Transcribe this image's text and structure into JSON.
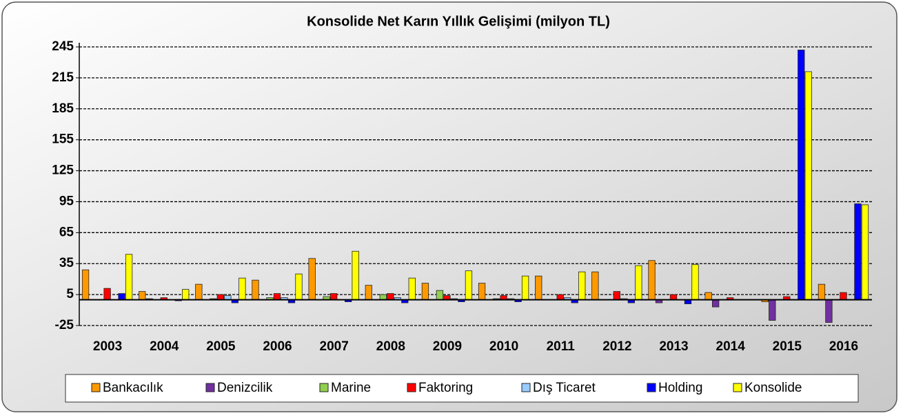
{
  "chart_data": {
    "type": "bar",
    "title": "Konsolide Net Karın Yıllık Gelişimi (milyon TL)",
    "categories": [
      "2003",
      "2004",
      "2005",
      "2006",
      "2007",
      "2008",
      "2009",
      "2010",
      "2011",
      "2012",
      "2013",
      "2014",
      "2015",
      "2016"
    ],
    "series": [
      {
        "name": "Bankacılık",
        "color": "#ff9900",
        "values": [
          29,
          8,
          15,
          19,
          40,
          14,
          16,
          16,
          23,
          27,
          38,
          7,
          -2,
          15
        ]
      },
      {
        "name": "Denizcilik",
        "color": "#7030a0",
        "values": [
          0,
          1,
          0,
          0,
          0,
          0,
          0,
          0,
          0,
          0,
          -3,
          -7,
          -20,
          -22
        ]
      },
      {
        "name": "Marine",
        "color": "#92d050",
        "values": [
          0,
          0,
          1,
          2,
          3,
          5,
          9,
          1,
          0,
          0,
          0,
          0,
          0,
          0
        ]
      },
      {
        "name": "Faktoring",
        "color": "#ff0000",
        "values": [
          11,
          2,
          5,
          6,
          6,
          6,
          4,
          4,
          5,
          8,
          5,
          2,
          3,
          7
        ]
      },
      {
        "name": "Dış Ticaret",
        "color": "#99ccff",
        "values": [
          0,
          0,
          4,
          2,
          0,
          2,
          1,
          1,
          2,
          1,
          0,
          0,
          0,
          0
        ]
      },
      {
        "name": "Holding",
        "color": "#0000ff",
        "values": [
          6,
          -1,
          -3,
          -3,
          -2,
          -3,
          -2,
          -2,
          -3,
          -3,
          -4,
          0,
          242,
          93
        ]
      },
      {
        "name": "Konsolide",
        "color": "#ffff00",
        "values": [
          44,
          10,
          21,
          25,
          47,
          21,
          28,
          23,
          27,
          33,
          34,
          0,
          221,
          92
        ]
      }
    ],
    "ylim": [
      -25,
      245
    ],
    "yticks": [
      -25,
      5,
      35,
      65,
      95,
      125,
      155,
      185,
      215,
      245
    ],
    "grid": true
  }
}
